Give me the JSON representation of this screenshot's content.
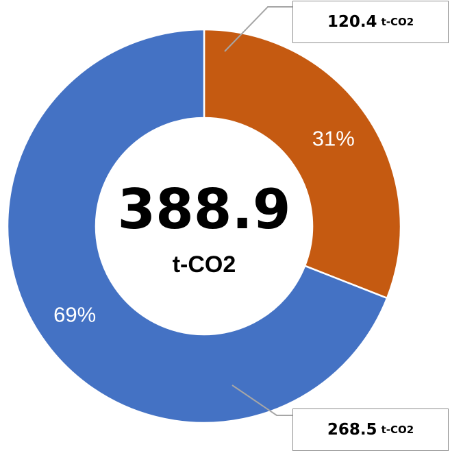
{
  "chart_data": {
    "type": "donut",
    "slices": [
      {
        "value": 120.4,
        "percent_label": "31%",
        "color": "#C55A11",
        "callout_value": "120.4",
        "callout_unit": "t-CO2"
      },
      {
        "value": 268.5,
        "percent_label": "69%",
        "color": "#4472C4",
        "callout_value": "268.5",
        "callout_unit": "t-CO2"
      }
    ],
    "center_total": "388.9",
    "center_unit": "t-CO2"
  }
}
